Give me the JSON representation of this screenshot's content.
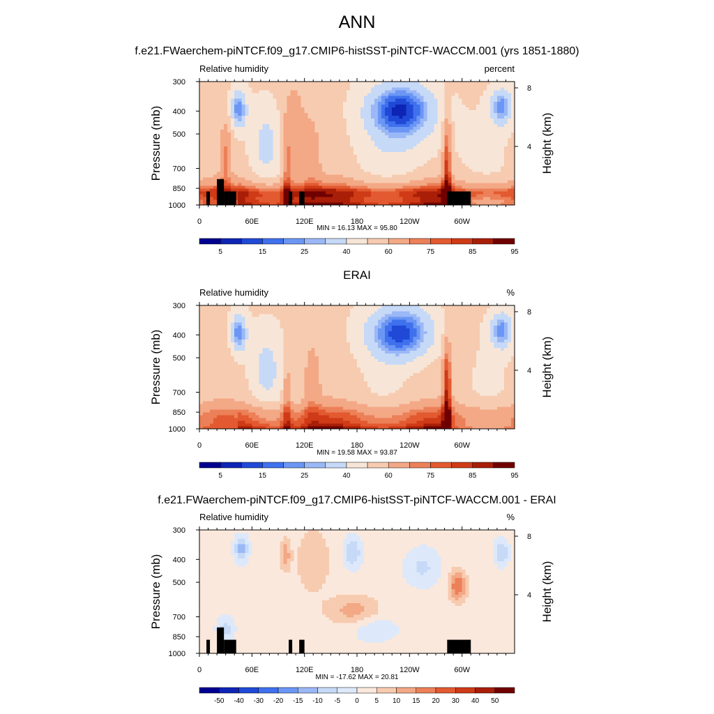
{
  "page_title": "ANN",
  "colors": {
    "rh_levels": [
      "#000090",
      "#0d24b4",
      "#1f49d6",
      "#3f70ed",
      "#6b96f4",
      "#9ab8f6",
      "#c6d9f7",
      "#f7e6d7",
      "#f7cbb0",
      "#f3a886",
      "#ec8058",
      "#e35a30",
      "#cf3a17",
      "#a81e07",
      "#700000"
    ],
    "diff_levels": [
      "#000090",
      "#0d24b4",
      "#1f49d6",
      "#3f70ed",
      "#6b96f4",
      "#9ab8f6",
      "#c6d9f7",
      "#dde9fa",
      "#fbe8dc",
      "#f7cbb0",
      "#f3a886",
      "#ec8058",
      "#e35a30",
      "#cf3a17",
      "#a81e07",
      "#700000"
    ],
    "topography": "#000000"
  },
  "chart_data": [
    {
      "type": "heatmap",
      "title": "f.e21.FWaerchem-piNTCF.f09_g17.CMIP6-histSST-piNTCF-WACCM.001 (yrs 1851-1880)",
      "left_label": "Relative humidity",
      "units": "percent",
      "ylabel": "Pressure (mb)",
      "y2label": "Height (km)",
      "x_ticks": [
        "0",
        "60E",
        "120E",
        "180",
        "120W",
        "60W"
      ],
      "y_ticks": [
        "300",
        "400",
        "500",
        "700",
        "850",
        "1000"
      ],
      "y2_ticks": [
        "8",
        "4"
      ],
      "xlim": [
        0,
        360
      ],
      "ylim": [
        1000,
        300
      ],
      "stats": "MIN = 16.13  MAX = 95.80",
      "colorbar_labels": [
        "5",
        "15",
        "25",
        "40",
        "60",
        "75",
        "85",
        "95"
      ],
      "field": "model"
    },
    {
      "type": "heatmap",
      "title": "ERAI",
      "left_label": "Relative humidity",
      "units": "%",
      "ylabel": "Pressure (mb)",
      "y2label": "Height (km)",
      "x_ticks": [
        "0",
        "60E",
        "120E",
        "180",
        "120W",
        "60W"
      ],
      "y_ticks": [
        "300",
        "400",
        "500",
        "700",
        "850",
        "1000"
      ],
      "y2_ticks": [
        "8",
        "4"
      ],
      "xlim": [
        0,
        360
      ],
      "ylim": [
        1000,
        300
      ],
      "stats": "MIN = 19.58  MAX = 93.87",
      "colorbar_labels": [
        "5",
        "15",
        "25",
        "40",
        "60",
        "75",
        "85",
        "95"
      ],
      "field": "erai"
    },
    {
      "type": "heatmap",
      "title": "f.e21.FWaerchem-piNTCF.f09_g17.CMIP6-histSST-piNTCF-WACCM.001 - ERAI",
      "left_label": "Relative humidity",
      "units": "%",
      "ylabel": "Pressure (mb)",
      "y2label": "Height (km)",
      "x_ticks": [
        "0",
        "60E",
        "120E",
        "180",
        "120W",
        "60W"
      ],
      "y_ticks": [
        "300",
        "400",
        "500",
        "700",
        "850",
        "1000"
      ],
      "y2_ticks": [
        "8",
        "4"
      ],
      "xlim": [
        0,
        360
      ],
      "ylim": [
        1000,
        300
      ],
      "stats": "MIN = -17.62  MAX = 20.81",
      "colorbar_labels": [
        "-50",
        "-40",
        "-30",
        "-20",
        "-15",
        "-10",
        "-5",
        "0",
        "5",
        "10",
        "15",
        "20",
        "30",
        "40",
        "50"
      ],
      "field": "diff"
    }
  ]
}
